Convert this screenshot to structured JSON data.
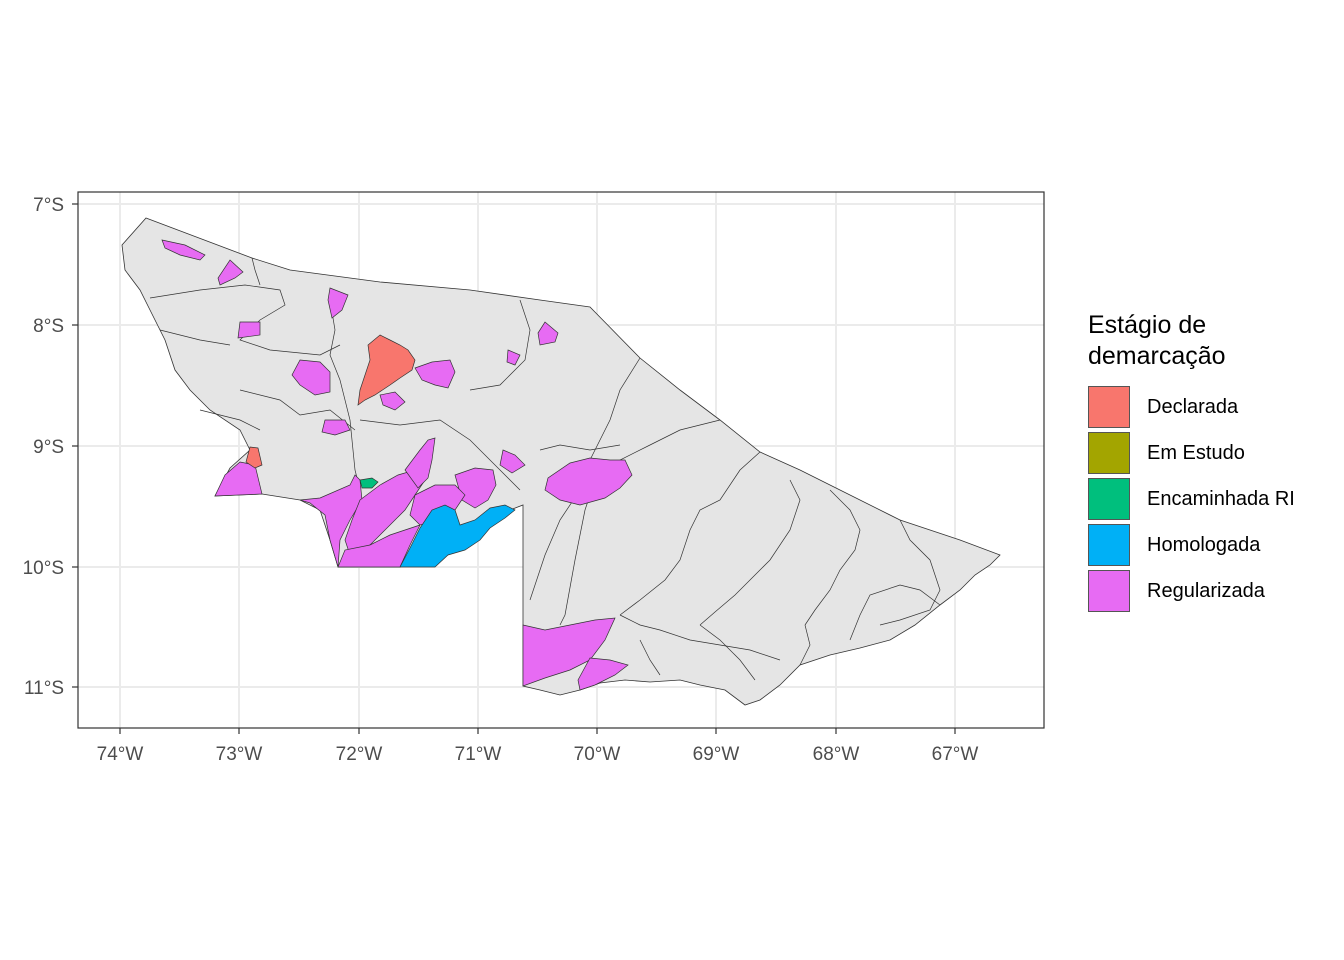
{
  "map": {
    "x_ticks": [
      "74°W",
      "73°W",
      "72°W",
      "71°W",
      "70°W",
      "69°W",
      "68°W",
      "67°W"
    ],
    "y_ticks": [
      "7°S",
      "8°S",
      "9°S",
      "10°S",
      "11°S"
    ],
    "colors": {
      "panel_border": "#333333",
      "grid": "#ebebeb",
      "base_fill": "#e5e5e5",
      "boundary_stroke": "#333333"
    }
  },
  "legend": {
    "title": "Estágio de\ndemarcação",
    "items": [
      {
        "label": "Declarada",
        "color": "#F8766D"
      },
      {
        "label": "Em Estudo",
        "color": "#A3A500"
      },
      {
        "label": "Encaminhada RI",
        "color": "#00BF7D"
      },
      {
        "label": "Homologada",
        "color": "#00B0F6"
      },
      {
        "label": "Regularizada",
        "color": "#E76BF3"
      }
    ]
  }
}
